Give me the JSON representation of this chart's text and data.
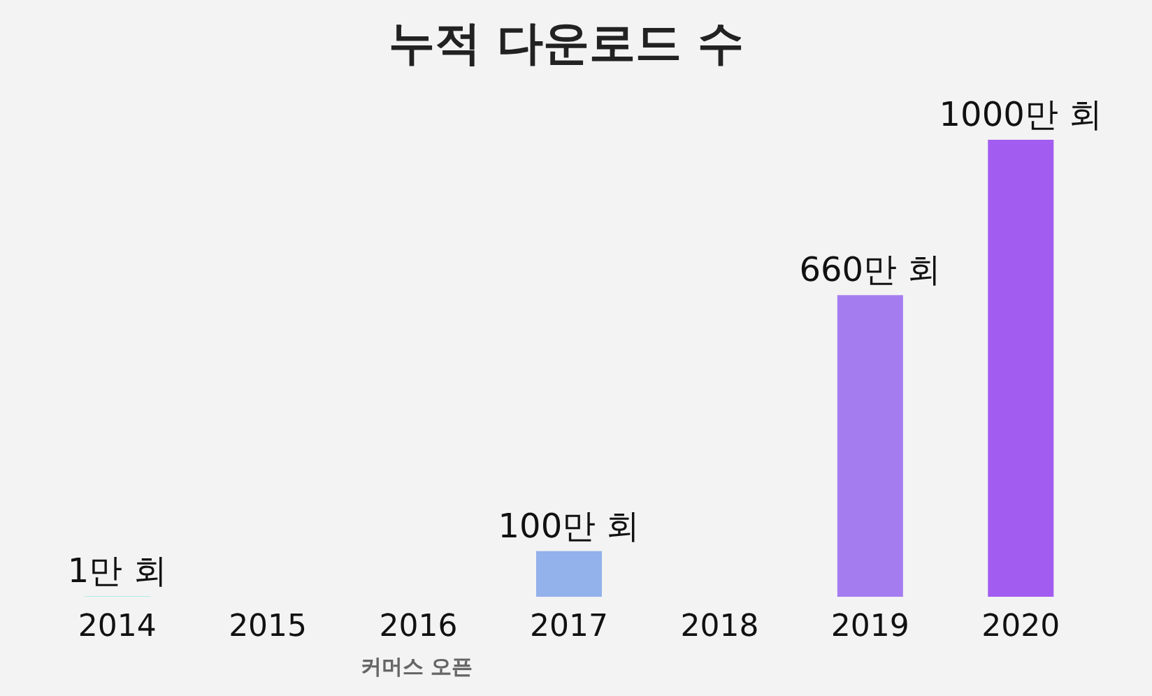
{
  "chart_data": {
    "type": "bar",
    "title": "누적 다운로드 수",
    "categories": [
      "2014",
      "2015",
      "2016",
      "2017",
      "2018",
      "2019",
      "2020"
    ],
    "values": [
      1,
      null,
      null,
      100,
      null,
      660,
      1000
    ],
    "colors": [
      "#8de8dc",
      null,
      null,
      "#93b1ea",
      null,
      "#a57cf0",
      "#a35cf0"
    ],
    "value_labels": [
      "1만 회",
      null,
      null,
      "100만 회",
      null,
      "660만 회",
      "1000만 회"
    ],
    "annotations": [
      "커머스 오픈"
    ]
  }
}
